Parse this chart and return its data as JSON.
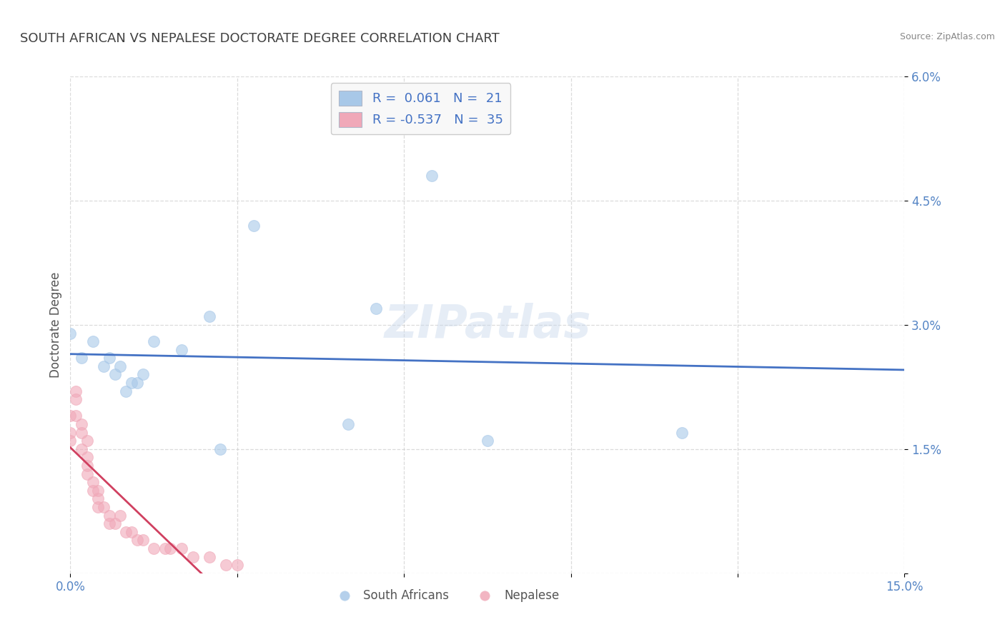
{
  "title": "SOUTH AFRICAN VS NEPALESE DOCTORATE DEGREE CORRELATION CHART",
  "source": "Source: ZipAtlas.com",
  "ylabel": "Doctorate Degree",
  "xlim": [
    0.0,
    0.15
  ],
  "ylim": [
    0.0,
    0.06
  ],
  "xticks": [
    0.0,
    0.03,
    0.06,
    0.09,
    0.12,
    0.15
  ],
  "xticklabels": [
    "0.0%",
    "",
    "",
    "",
    "",
    "15.0%"
  ],
  "yticks": [
    0.0,
    0.015,
    0.03,
    0.045,
    0.06
  ],
  "yticklabels": [
    "",
    "1.5%",
    "3.0%",
    "4.5%",
    "6.0%"
  ],
  "background_color": "#ffffff",
  "watermark": "ZIPatlas",
  "legend_r1": "R =  0.061",
  "legend_n1": "N =  21",
  "legend_r2": "R = -0.537",
  "legend_n2": "N =  35",
  "blue_color": "#a8c8e8",
  "pink_color": "#f0a8b8",
  "blue_line_color": "#4472c4",
  "pink_line_color": "#d04060",
  "south_africans_x": [
    0.0,
    0.002,
    0.004,
    0.006,
    0.007,
    0.008,
    0.009,
    0.01,
    0.011,
    0.012,
    0.013,
    0.015,
    0.02,
    0.025,
    0.027,
    0.033,
    0.05,
    0.055,
    0.065,
    0.075,
    0.11
  ],
  "south_africans_y": [
    0.029,
    0.026,
    0.028,
    0.025,
    0.026,
    0.024,
    0.025,
    0.022,
    0.023,
    0.023,
    0.024,
    0.028,
    0.027,
    0.031,
    0.015,
    0.042,
    0.018,
    0.032,
    0.048,
    0.016,
    0.017
  ],
  "nepalese_x": [
    0.0,
    0.0,
    0.0,
    0.001,
    0.001,
    0.001,
    0.002,
    0.002,
    0.002,
    0.003,
    0.003,
    0.003,
    0.003,
    0.004,
    0.004,
    0.005,
    0.005,
    0.005,
    0.006,
    0.007,
    0.007,
    0.008,
    0.009,
    0.01,
    0.011,
    0.012,
    0.013,
    0.015,
    0.017,
    0.018,
    0.02,
    0.022,
    0.025,
    0.028,
    0.03
  ],
  "nepalese_y": [
    0.019,
    0.017,
    0.016,
    0.022,
    0.021,
    0.019,
    0.018,
    0.017,
    0.015,
    0.016,
    0.014,
    0.013,
    0.012,
    0.011,
    0.01,
    0.01,
    0.009,
    0.008,
    0.008,
    0.007,
    0.006,
    0.006,
    0.007,
    0.005,
    0.005,
    0.004,
    0.004,
    0.003,
    0.003,
    0.003,
    0.003,
    0.002,
    0.002,
    0.001,
    0.001
  ],
  "dot_size": 130,
  "alpha": 0.6,
  "grid_color": "#cccccc",
  "grid_linestyle": "--",
  "grid_alpha": 0.7,
  "title_color": "#404040",
  "axis_label_color": "#555555",
  "tick_color": "#5585c5",
  "source_color": "#888888",
  "legend_text_color": "#4472c4"
}
